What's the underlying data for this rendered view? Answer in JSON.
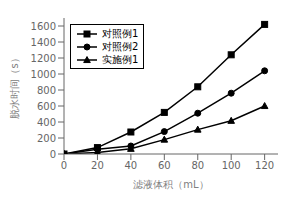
{
  "chart_data": {
    "type": "line",
    "xlabel": "滤液体积（mL）",
    "ylabel": "脱水时间（s）",
    "x": [
      0,
      20,
      40,
      60,
      80,
      100,
      120
    ],
    "xlim": [
      0,
      128
    ],
    "ylim": [
      0,
      1700
    ],
    "xticks": [
      0,
      20,
      40,
      60,
      80,
      100,
      120
    ],
    "yticks": [
      0,
      200,
      400,
      600,
      800,
      1000,
      1200,
      1400,
      1600
    ],
    "series": [
      {
        "name": "对照例1",
        "color": "#000000",
        "marker": "square",
        "values": [
          0,
          80,
          275,
          520,
          840,
          1240,
          1620
        ]
      },
      {
        "name": "对照例2",
        "color": "#000000",
        "marker": "circle",
        "values": [
          0,
          60,
          100,
          280,
          510,
          760,
          1040
        ]
      },
      {
        "name": "实施例1",
        "color": "#000000",
        "marker": "triangle",
        "values": [
          0,
          20,
          65,
          180,
          305,
          415,
          600
        ]
      }
    ],
    "legend": "upper left",
    "grid": false
  }
}
